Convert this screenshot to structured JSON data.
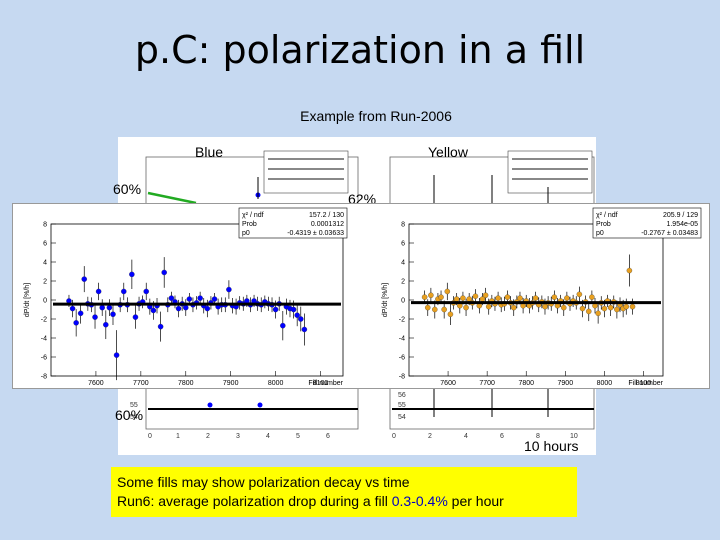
{
  "slide": {
    "title": "p.C: polarization in a fill",
    "subtitle": "Example from Run-2006",
    "label_blue": "Blue",
    "label_yellow": "Yellow",
    "pct_60_top": "60%",
    "pct_62": "62%",
    "pct_60_bottom": "60%",
    "time_label": "10 hours",
    "note_line1": "Some fills may show polarization decay vs time",
    "note_line2_prefix": "Run6: average polarization drop during a fill ",
    "note_line2_value": "0.3-0.4%",
    "note_line2_suffix": " per hour"
  },
  "colors": {
    "background": "#c6d9f1",
    "note_bg": "#ffff00",
    "blue_marker": "#0000ff",
    "yellow_marker": "#e8a020"
  },
  "chart_data": [
    {
      "type": "scatter",
      "ylabel": "dP/dt [%/h]",
      "xlabel": "Fill number",
      "xlim": [
        7500,
        8150
      ],
      "ylim": [
        -8,
        8
      ],
      "xticks": [
        "7600",
        "7700",
        "7800",
        "7900",
        "8000",
        "8100"
      ],
      "yticks": [
        "-8",
        "-6",
        "-4",
        "-2",
        "0",
        "2",
        "4",
        "6",
        "8"
      ],
      "fit": {
        "chi2_label": "χ² / ndf",
        "chi2_value": "157.2 / 130",
        "prob_label": "Prob",
        "prob_value": "0.0001312",
        "p0_label": "p0",
        "p0_value": "-0.4319 ± 0.03633",
        "p0": -0.43
      },
      "marker_color": "#0000ff",
      "points": [
        [
          7540,
          -0.1
        ],
        [
          7548,
          -0.9
        ],
        [
          7556,
          -2.4
        ],
        [
          7566,
          -1.4
        ],
        [
          7574,
          2.2
        ],
        [
          7582,
          -0.4
        ],
        [
          7590,
          -0.5
        ],
        [
          7598,
          -1.8
        ],
        [
          7606,
          0.9
        ],
        [
          7614,
          -0.8
        ],
        [
          7622,
          -2.6
        ],
        [
          7630,
          -0.8
        ],
        [
          7638,
          -1.5
        ],
        [
          7646,
          -5.8
        ],
        [
          7654,
          -0.5
        ],
        [
          7662,
          0.9
        ],
        [
          7670,
          -0.5
        ],
        [
          7680,
          2.7
        ],
        [
          7688,
          -1.8
        ],
        [
          7696,
          -0.4
        ],
        [
          7704,
          -0.2
        ],
        [
          7712,
          0.9
        ],
        [
          7720,
          -0.7
        ],
        [
          7728,
          -1.1
        ],
        [
          7736,
          -0.6
        ],
        [
          7744,
          -2.8
        ],
        [
          7752,
          2.9
        ],
        [
          7760,
          -0.5
        ],
        [
          7768,
          0.2
        ],
        [
          7776,
          -0.2
        ],
        [
          7784,
          -0.9
        ],
        [
          7792,
          -0.4
        ],
        [
          7800,
          -0.8
        ],
        [
          7808,
          0.1
        ],
        [
          7816,
          -0.5
        ],
        [
          7824,
          -0.3
        ],
        [
          7832,
          0.2
        ],
        [
          7840,
          -0.6
        ],
        [
          7848,
          -0.9
        ],
        [
          7856,
          -0.3
        ],
        [
          7864,
          0.1
        ],
        [
          7872,
          -0.7
        ],
        [
          7880,
          -0.5
        ],
        [
          7888,
          -0.5
        ],
        [
          7896,
          1.1
        ],
        [
          7904,
          -0.6
        ],
        [
          7912,
          -0.7
        ],
        [
          7920,
          -0.3
        ],
        [
          7928,
          -0.4
        ],
        [
          7936,
          -0.1
        ],
        [
          7944,
          -0.5
        ],
        [
          7952,
          -0.1
        ],
        [
          7960,
          -0.4
        ],
        [
          7968,
          -0.5
        ],
        [
          7976,
          -0.2
        ],
        [
          7984,
          -0.4
        ],
        [
          7992,
          -0.5
        ],
        [
          8000,
          -1.0
        ],
        [
          8008,
          -0.4
        ],
        [
          8016,
          -2.7
        ],
        [
          8024,
          -0.7
        ],
        [
          8032,
          -0.9
        ],
        [
          8040,
          -1.0
        ],
        [
          8048,
          -1.6
        ],
        [
          8056,
          -2.0
        ],
        [
          8064,
          -3.1
        ]
      ]
    },
    {
      "type": "scatter",
      "ylabel": "dP/dt [%/h]",
      "xlabel": "Fill number",
      "xlim": [
        7500,
        8150
      ],
      "ylim": [
        -8,
        8
      ],
      "xticks": [
        "7600",
        "7700",
        "7800",
        "7900",
        "8000",
        "8100"
      ],
      "yticks": [
        "-8",
        "-6",
        "-4",
        "-2",
        "0",
        "2",
        "4",
        "6",
        "8"
      ],
      "fit": {
        "chi2_label": "χ² / ndf",
        "chi2_value": "205.9 / 129",
        "prob_label": "Prob",
        "prob_value": "1.954e-05",
        "p0_label": "p0",
        "p0_value": "-0.2767 ± 0.03483",
        "p0": -0.28
      },
      "marker_color": "#e8a020",
      "points": [
        [
          7540,
          0.3
        ],
        [
          7548,
          -0.8
        ],
        [
          7556,
          0.5
        ],
        [
          7566,
          -1.0
        ],
        [
          7574,
          0.1
        ],
        [
          7582,
          0.3
        ],
        [
          7590,
          -1.0
        ],
        [
          7598,
          0.9
        ],
        [
          7606,
          -1.5
        ],
        [
          7614,
          -0.3
        ],
        [
          7622,
          0.1
        ],
        [
          7630,
          -0.6
        ],
        [
          7638,
          0.2
        ],
        [
          7646,
          -0.8
        ],
        [
          7654,
          0.1
        ],
        [
          7662,
          -0.3
        ],
        [
          7670,
          0.4
        ],
        [
          7680,
          -0.6
        ],
        [
          7688,
          0.1
        ],
        [
          7696,
          0.5
        ],
        [
          7704,
          -0.7
        ],
        [
          7712,
          -0.1
        ],
        [
          7720,
          -0.4
        ],
        [
          7728,
          0.2
        ],
        [
          7736,
          -0.5
        ],
        [
          7744,
          -0.4
        ],
        [
          7752,
          0.3
        ],
        [
          7760,
          -0.3
        ],
        [
          7768,
          -0.8
        ],
        [
          7776,
          -0.2
        ],
        [
          7784,
          0.2
        ],
        [
          7792,
          -0.6
        ],
        [
          7800,
          -0.1
        ],
        [
          7808,
          -0.6
        ],
        [
          7816,
          -0.3
        ],
        [
          7824,
          0.2
        ],
        [
          7832,
          -0.5
        ],
        [
          7840,
          -0.2
        ],
        [
          7848,
          -0.7
        ],
        [
          7856,
          -0.3
        ],
        [
          7864,
          -0.4
        ],
        [
          7872,
          0.3
        ],
        [
          7880,
          -0.6
        ],
        [
          7888,
          -0.1
        ],
        [
          7896,
          -0.8
        ],
        [
          7904,
          0.2
        ],
        [
          7912,
          -0.4
        ],
        [
          7920,
          -0.1
        ],
        [
          7928,
          -0.3
        ],
        [
          7936,
          0.6
        ],
        [
          7944,
          -0.9
        ],
        [
          7952,
          -0.2
        ],
        [
          7960,
          -1.2
        ],
        [
          7968,
          0.3
        ],
        [
          7976,
          -0.6
        ],
        [
          7984,
          -1.4
        ],
        [
          7992,
          -0.3
        ],
        [
          8000,
          -0.9
        ],
        [
          8008,
          -0.1
        ],
        [
          8016,
          -0.8
        ],
        [
          8024,
          -0.2
        ],
        [
          8032,
          -1.0
        ],
        [
          8040,
          -0.5
        ],
        [
          8048,
          -0.9
        ],
        [
          8056,
          -0.7
        ],
        [
          8064,
          3.1
        ],
        [
          8072,
          -0.7
        ]
      ]
    }
  ]
}
